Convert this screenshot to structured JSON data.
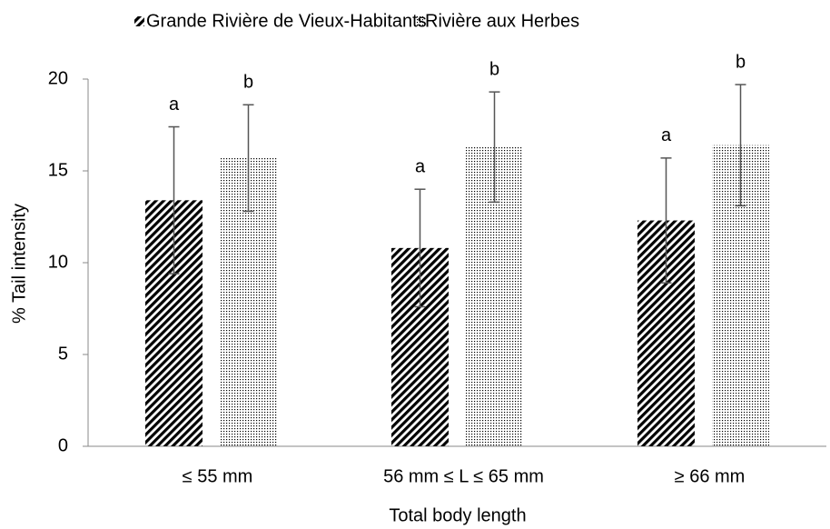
{
  "chart_data": {
    "type": "bar",
    "x_label": "Total body length",
    "y_label": "% Tail intensity",
    "categories": [
      "≤ 55 mm",
      "56 mm ≤ L ≤ 65 mm",
      "≥ 66 mm"
    ],
    "series": [
      {
        "name": "Grande Rivière de Vieux-Habitants",
        "color": "#000000",
        "pattern": "diagonal",
        "values": [
          13.4,
          10.8,
          12.3
        ],
        "errors": [
          4.0,
          3.2,
          3.4
        ],
        "annotations": [
          "a",
          "a",
          "a"
        ]
      },
      {
        "name": "Rivière aux Herbes",
        "color": "#000000",
        "pattern": "dots",
        "values": [
          15.7,
          16.3,
          16.4
        ],
        "errors": [
          2.9,
          3.0,
          3.3
        ],
        "annotations": [
          "b",
          "b",
          "b"
        ]
      }
    ],
    "ylim": [
      0,
      20
    ],
    "yticks": [
      0,
      5,
      10,
      15,
      20
    ],
    "legend": "top",
    "grid": false
  }
}
